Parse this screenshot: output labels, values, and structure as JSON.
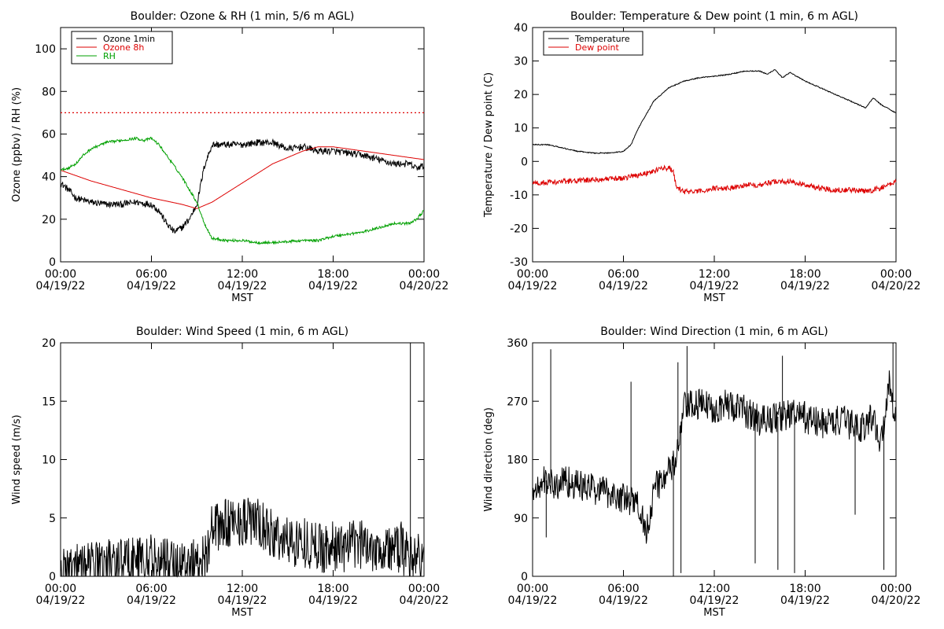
{
  "chart_data": [
    {
      "type": "line",
      "title": "Boulder: Ozone & RH (1 min, 5/6 m AGL)",
      "xlabel": "MST",
      "ylabel": "Ozone (ppbv) / RH (%)",
      "xlim": [
        "2022-04-19 00:00",
        "2022-04-20 00:00"
      ],
      "ylim": [
        0,
        110
      ],
      "yticks": [
        0,
        20,
        40,
        60,
        80,
        100
      ],
      "xticks": [
        {
          "t": 0,
          "time": "00:00",
          "date": "04/19/22"
        },
        {
          "t": 6,
          "time": "06:00",
          "date": "04/19/22"
        },
        {
          "t": 12,
          "time": "12:00",
          "date": "04/19/22"
        },
        {
          "t": 18,
          "time": "18:00",
          "date": "04/19/22"
        },
        {
          "t": 24,
          "time": "00:00",
          "date": "04/20/22"
        }
      ],
      "legend_position": "top-left",
      "reference_line": {
        "y": 70,
        "color": "#dd0000",
        "style": "dotted"
      },
      "series": [
        {
          "name": "Ozone 1min",
          "color": "#000000",
          "noise": 1.6,
          "x": [
            0,
            0.5,
            1,
            2,
            3,
            4,
            5,
            6,
            6.5,
            7,
            7.5,
            8,
            8.5,
            9,
            9.5,
            10,
            11,
            12,
            13,
            14,
            15,
            16,
            17,
            18,
            19,
            20,
            21,
            22,
            23,
            23.5,
            24
          ],
          "y": [
            37,
            34,
            30,
            28,
            27,
            27,
            28,
            27,
            24,
            18,
            14,
            16,
            20,
            27,
            45,
            55,
            55,
            55,
            56,
            56,
            53,
            54,
            52,
            52,
            51,
            50,
            48,
            46,
            46,
            44,
            45
          ]
        },
        {
          "name": "Ozone 8h",
          "color": "#dd0000",
          "noise": 0,
          "x": [
            0,
            2,
            4,
            6,
            8,
            9,
            10,
            12,
            14,
            16,
            17,
            18,
            20,
            22,
            24
          ],
          "y": [
            43,
            38,
            34,
            30,
            27,
            25,
            28,
            37,
            46,
            52,
            54,
            54,
            52,
            50,
            48
          ]
        },
        {
          "name": "RH",
          "color": "#00a000",
          "noise": 0.6,
          "x": [
            0,
            0.5,
            1,
            1.5,
            2,
            3,
            4,
            5,
            5.5,
            6,
            6.5,
            7,
            8,
            9,
            9.5,
            10,
            11,
            12,
            13,
            14,
            15,
            16,
            17,
            18,
            19,
            20,
            21,
            22,
            23,
            23.5,
            24
          ],
          "y": [
            43,
            44,
            46,
            50,
            53,
            56,
            57,
            58,
            57,
            58,
            55,
            50,
            40,
            28,
            18,
            11,
            10,
            10,
            9,
            9,
            9.5,
            10,
            10,
            12,
            13,
            14,
            16,
            18,
            18,
            20,
            24
          ]
        }
      ]
    },
    {
      "type": "line",
      "title": "Boulder: Temperature & Dew point (1 min, 6 m AGL)",
      "xlabel": "MST",
      "ylabel": "Temperature / Dew point (C)",
      "xlim": [
        "2022-04-19 00:00",
        "2022-04-20 00:00"
      ],
      "ylim": [
        -30,
        40
      ],
      "yticks": [
        -30,
        -20,
        -10,
        0,
        10,
        20,
        30,
        40
      ],
      "xticks": [
        {
          "t": 0,
          "time": "00:00",
          "date": "04/19/22"
        },
        {
          "t": 6,
          "time": "06:00",
          "date": "04/19/22"
        },
        {
          "t": 12,
          "time": "12:00",
          "date": "04/19/22"
        },
        {
          "t": 18,
          "time": "18:00",
          "date": "04/19/22"
        },
        {
          "t": 24,
          "time": "00:00",
          "date": "04/20/22"
        }
      ],
      "legend_position": "top-left",
      "series": [
        {
          "name": "Temperature",
          "color": "#000000",
          "noise": 0.15,
          "x": [
            0,
            1,
            2,
            3,
            4,
            5,
            6,
            6.5,
            7,
            7.5,
            8,
            9,
            10,
            11,
            12,
            13,
            14,
            15,
            15.5,
            16,
            16.5,
            17,
            18,
            19,
            20,
            21,
            22,
            22.5,
            23,
            24
          ],
          "y": [
            5,
            5,
            4,
            3,
            2.5,
            2.5,
            3,
            5,
            10,
            14,
            18,
            22,
            24,
            25,
            25.5,
            26,
            27,
            27,
            26,
            27.5,
            25,
            26.5,
            24,
            22,
            20,
            18,
            16,
            19,
            17,
            14.5
          ]
        },
        {
          "name": "Dew point",
          "color": "#dd0000",
          "noise": 0.8,
          "x": [
            0,
            2,
            4,
            6,
            7,
            8,
            8.5,
            9,
            9.3,
            9.5,
            10,
            11,
            12,
            13,
            14,
            15,
            16,
            17,
            18,
            19,
            20,
            21,
            22,
            23,
            24
          ],
          "y": [
            -6.5,
            -6,
            -5.5,
            -5,
            -4,
            -3,
            -2,
            -2,
            -3,
            -8,
            -9,
            -9,
            -8,
            -8,
            -7,
            -7,
            -6,
            -6,
            -7,
            -8,
            -8.5,
            -8.5,
            -9,
            -8,
            -6
          ]
        }
      ]
    },
    {
      "type": "line",
      "title": "Boulder: Wind Speed (1 min, 6 m AGL)",
      "xlabel": "MST",
      "ylabel": "Wind speed (m/s)",
      "xlim": [
        "2022-04-19 00:00",
        "2022-04-20 00:00"
      ],
      "ylim": [
        0,
        20
      ],
      "yticks": [
        0,
        5,
        10,
        15,
        20
      ],
      "xticks": [
        {
          "t": 0,
          "time": "00:00",
          "date": "04/19/22"
        },
        {
          "t": 6,
          "time": "06:00",
          "date": "04/19/22"
        },
        {
          "t": 12,
          "time": "12:00",
          "date": "04/19/22"
        },
        {
          "t": 18,
          "time": "18:00",
          "date": "04/19/22"
        },
        {
          "t": 24,
          "time": "00:00",
          "date": "04/20/22"
        }
      ],
      "series": [
        {
          "name": "",
          "color": "#000000",
          "noise": 2.2,
          "min": 0,
          "x": [
            0,
            1,
            2,
            3,
            4,
            5,
            6,
            7,
            8,
            9,
            9.5,
            10,
            11,
            12,
            13,
            14,
            15,
            16,
            17,
            18,
            19,
            20,
            21,
            22,
            22.5,
            23,
            23.5,
            24
          ],
          "y": [
            0.5,
            0.8,
            1,
            1.2,
            1.3,
            1.5,
            1.4,
            1.2,
            1.2,
            1.3,
            1.5,
            4,
            4.5,
            4.8,
            4.5,
            3.5,
            3,
            3,
            2.5,
            2.5,
            2.5,
            2.8,
            2.5,
            2.2,
            2.5,
            1.5,
            2,
            0.8
          ]
        }
      ],
      "spikes": [
        {
          "x": 23.1,
          "y": 20
        }
      ]
    },
    {
      "type": "line",
      "title": "Boulder: Wind Direction (1 min, 6 m AGL)",
      "xlabel": "MST",
      "ylabel": "Wind direction (deg)",
      "xlim": [
        "2022-04-19 00:00",
        "2022-04-20 00:00"
      ],
      "ylim": [
        0,
        360
      ],
      "yticks": [
        0,
        90,
        180,
        270,
        360
      ],
      "xticks": [
        {
          "t": 0,
          "time": "00:00",
          "date": "04/19/22"
        },
        {
          "t": 6,
          "time": "06:00",
          "date": "04/19/22"
        },
        {
          "t": 12,
          "time": "12:00",
          "date": "04/19/22"
        },
        {
          "t": 18,
          "time": "18:00",
          "date": "04/19/22"
        },
        {
          "t": 24,
          "time": "00:00",
          "date": "04/20/22"
        }
      ],
      "series": [
        {
          "name": "",
          "color": "#000000",
          "noise": 25,
          "min": 0,
          "max": 360,
          "x": [
            0,
            0.5,
            1,
            1.5,
            2,
            3,
            4,
            5,
            6,
            7,
            7.5,
            8,
            8.5,
            9,
            9.5,
            10,
            11,
            12,
            13,
            14,
            15,
            16,
            17,
            18,
            19,
            20,
            21,
            22,
            22.5,
            23,
            23.5,
            24
          ],
          "y": [
            130,
            140,
            150,
            135,
            150,
            140,
            135,
            130,
            120,
            110,
            70,
            130,
            150,
            160,
            180,
            260,
            265,
            260,
            265,
            255,
            240,
            245,
            250,
            245,
            235,
            240,
            235,
            230,
            250,
            200,
            300,
            250
          ]
        }
      ],
      "spikes": [
        {
          "x": 0.9,
          "y": 60
        },
        {
          "x": 1.2,
          "y": 350
        },
        {
          "x": 6.5,
          "y": 300
        },
        {
          "x": 9.3,
          "y": 0
        },
        {
          "x": 9.6,
          "y": 330
        },
        {
          "x": 9.8,
          "y": 5
        },
        {
          "x": 10.2,
          "y": 355
        },
        {
          "x": 14.7,
          "y": 20
        },
        {
          "x": 16.2,
          "y": 10
        },
        {
          "x": 16.5,
          "y": 340
        },
        {
          "x": 17.3,
          "y": 5
        },
        {
          "x": 21.3,
          "y": 95
        },
        {
          "x": 23.2,
          "y": 10
        },
        {
          "x": 23.8,
          "y": 360
        }
      ]
    }
  ]
}
